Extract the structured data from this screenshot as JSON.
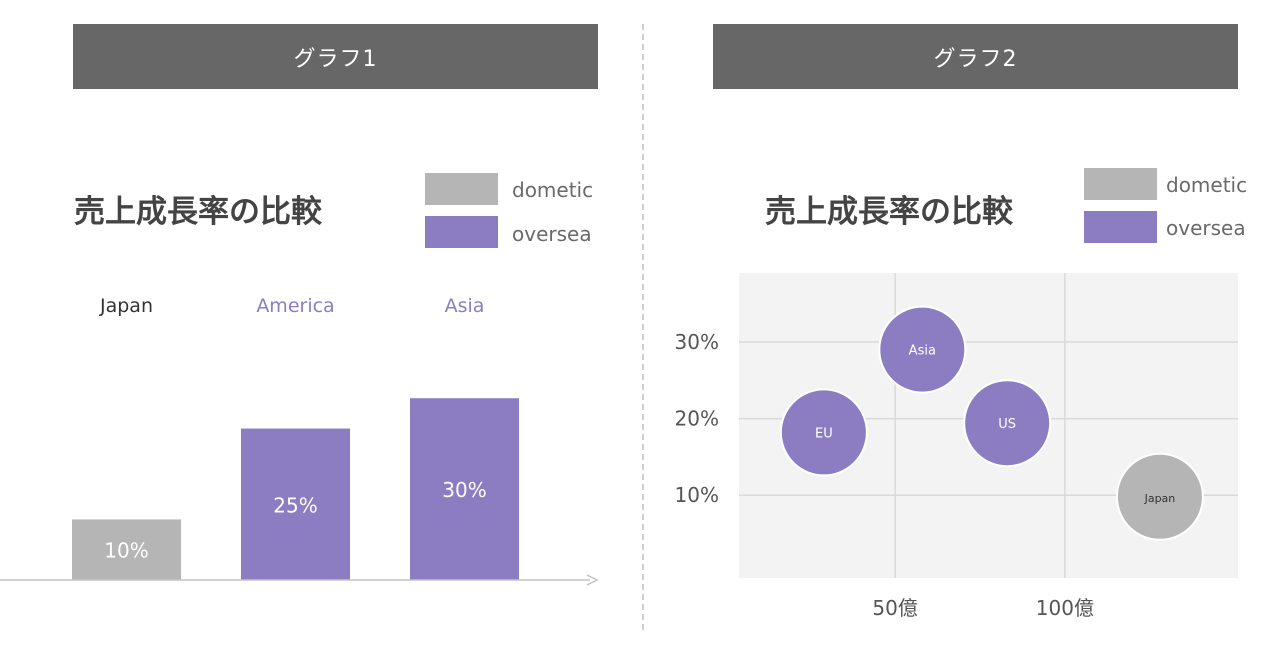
{
  "colors": {
    "header_bg": "#676767",
    "domestic": "#b5b5b5",
    "oversea": "#8c7dc2",
    "plot_bg": "#f3f3f3",
    "grid": "#d9d9d9"
  },
  "chart_data": [
    {
      "type": "bar",
      "header": "グラフ1",
      "title": "売上成長率の比較",
      "legend": [
        {
          "name": "dometic",
          "color": "#b5b5b5"
        },
        {
          "name": "oversea",
          "color": "#8c7dc2"
        }
      ],
      "categories": [
        "Japan",
        "America",
        "Asia"
      ],
      "values": [
        10,
        25,
        30
      ],
      "value_labels": [
        "10%",
        "25%",
        "30%"
      ],
      "series_of_category": [
        "dometic",
        "oversea",
        "oversea"
      ],
      "ylim": [
        0,
        34
      ],
      "axis": "x-arrow",
      "grid": false
    },
    {
      "type": "scatter",
      "header": "グラフ2",
      "title": "売上成長率の比較",
      "legend": [
        {
          "name": "dometic",
          "color": "#b5b5b5"
        },
        {
          "name": "oversea",
          "color": "#8c7dc2"
        }
      ],
      "x_ticks": [
        {
          "value": 50,
          "label": "50億"
        },
        {
          "value": 100,
          "label": "100億"
        }
      ],
      "y_ticks": [
        {
          "value": 10,
          "label": "10%"
        },
        {
          "value": 20,
          "label": "20%"
        },
        {
          "value": 30,
          "label": "30%"
        }
      ],
      "xlim": [
        4,
        151
      ],
      "ylim": [
        -0.8,
        39
      ],
      "grid": true,
      "points": [
        {
          "label": "Asia",
          "x": 58,
          "y": 29,
          "series": "oversea"
        },
        {
          "label": "EU",
          "x": 29,
          "y": 18.2,
          "series": "oversea"
        },
        {
          "label": "US",
          "x": 83,
          "y": 19.4,
          "series": "oversea"
        },
        {
          "label": "Japan",
          "x": 128,
          "y": 9.8,
          "series": "dometic"
        }
      ]
    }
  ]
}
